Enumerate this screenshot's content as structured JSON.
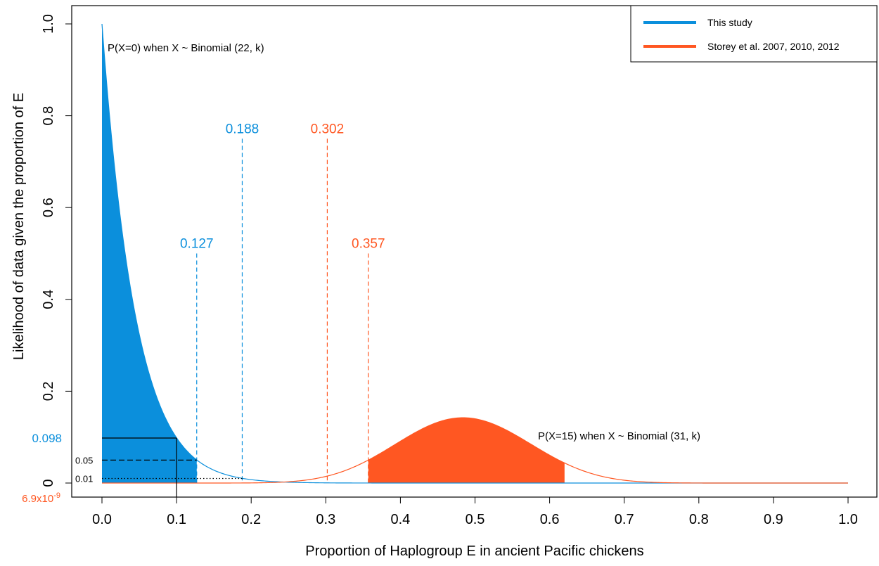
{
  "chart_data": {
    "type": "area",
    "xlabel": "Proportion of Haplogroup E in ancient Pacific chickens",
    "ylabel": "Likelihood of data given the proportion of E",
    "xlim": [
      0,
      1
    ],
    "ylim": [
      0,
      1
    ],
    "x_ticks": [
      "0.0",
      "0.1",
      "0.2",
      "0.3",
      "0.4",
      "0.5",
      "0.6",
      "0.7",
      "0.8",
      "0.9",
      "1.0"
    ],
    "y_ticks": [
      "0",
      "0.2",
      "0.4",
      "0.6",
      "0.8",
      "1.0"
    ],
    "grid": false,
    "legend_position": "top-right",
    "colors": {
      "blue": "#0b8fdc",
      "red": "#ff5722",
      "axis": "#000000"
    },
    "series": [
      {
        "name": "This study",
        "formula": "(1-k)^22",
        "n": 22,
        "successes": 0,
        "shaded_range": [
          0,
          0.127
        ]
      },
      {
        "name": "Storey et al. 2007, 2010, 2012",
        "formula": "C(31,15) k^15 (1-k)^16",
        "n": 31,
        "successes": 15,
        "shaded_range": [
          0.357,
          0.62
        ]
      }
    ],
    "annotations": {
      "curve_label_blue": "P(X=0) when X ~ Binomial (22, k)",
      "curve_label_red": "P(X=15) when X ~ Binomial (31, k)",
      "blue_cutoff_05": {
        "label": "0.127",
        "x": 0.127,
        "line_top": 0.5
      },
      "blue_cutoff_01": {
        "label": "0.188",
        "x": 0.188,
        "line_top": 0.75
      },
      "red_cutoff_01": {
        "label": "0.302",
        "x": 0.302,
        "line_top": 0.75
      },
      "red_cutoff_05": {
        "label": "0.357",
        "x": 0.357,
        "line_top": 0.5
      },
      "level_05": {
        "label": "0.05",
        "y": 0.05
      },
      "level_01": {
        "label": "0.01",
        "y": 0.01
      },
      "blue_at_01": {
        "label": "0.098",
        "x": 0.1,
        "y": 0.098
      },
      "red_at_01": {
        "label": "6.9x10",
        "exponent": "-9",
        "y": 0
      }
    }
  }
}
